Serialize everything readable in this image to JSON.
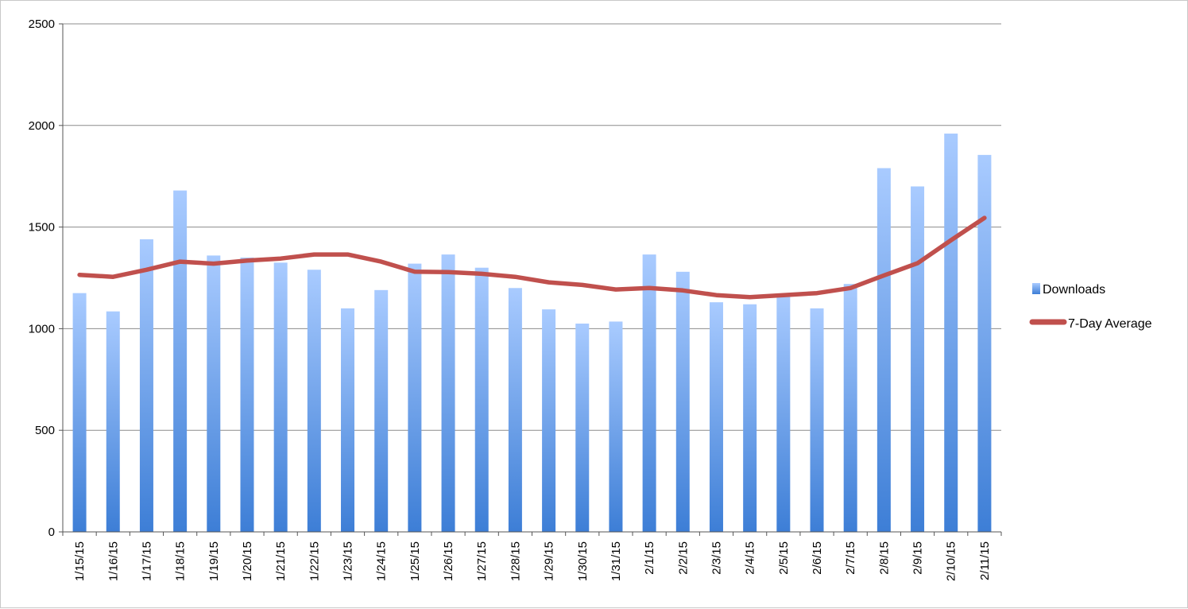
{
  "chart_data": {
    "type": "bar",
    "title": "",
    "xlabel": "",
    "ylabel": "",
    "ylim": [
      0,
      2500
    ],
    "yticks": [
      0,
      500,
      1000,
      1500,
      2000,
      2500
    ],
    "grid": true,
    "legend_position": "right",
    "categories": [
      "1/15/15",
      "1/16/15",
      "1/17/15",
      "1/18/15",
      "1/19/15",
      "1/20/15",
      "1/21/15",
      "1/22/15",
      "1/23/15",
      "1/24/15",
      "1/25/15",
      "1/26/15",
      "1/27/15",
      "1/28/15",
      "1/29/15",
      "1/30/15",
      "1/31/15",
      "2/1/15",
      "2/2/15",
      "2/3/15",
      "2/4/15",
      "2/5/15",
      "2/6/15",
      "2/7/15",
      "2/8/15",
      "2/9/15",
      "2/10/15",
      "2/11/15"
    ],
    "series": [
      {
        "name": "Downloads",
        "type": "bar",
        "color": "#4a86d8",
        "values": [
          1175,
          1085,
          1440,
          1680,
          1360,
          1350,
          1325,
          1290,
          1100,
          1190,
          1320,
          1365,
          1300,
          1200,
          1095,
          1025,
          1035,
          1365,
          1280,
          1130,
          1120,
          1165,
          1100,
          1220,
          1790,
          1700,
          1960,
          1855
        ]
      },
      {
        "name": "7-Day Average",
        "type": "line",
        "color": "#c0504d",
        "values": [
          1265,
          1255,
          1290,
          1330,
          1320,
          1335,
          1345,
          1365,
          1365,
          1330,
          1280,
          1278,
          1270,
          1255,
          1228,
          1215,
          1193,
          1200,
          1188,
          1165,
          1155,
          1165,
          1175,
          1200,
          1262,
          1322,
          1435,
          1545
        ]
      }
    ]
  }
}
